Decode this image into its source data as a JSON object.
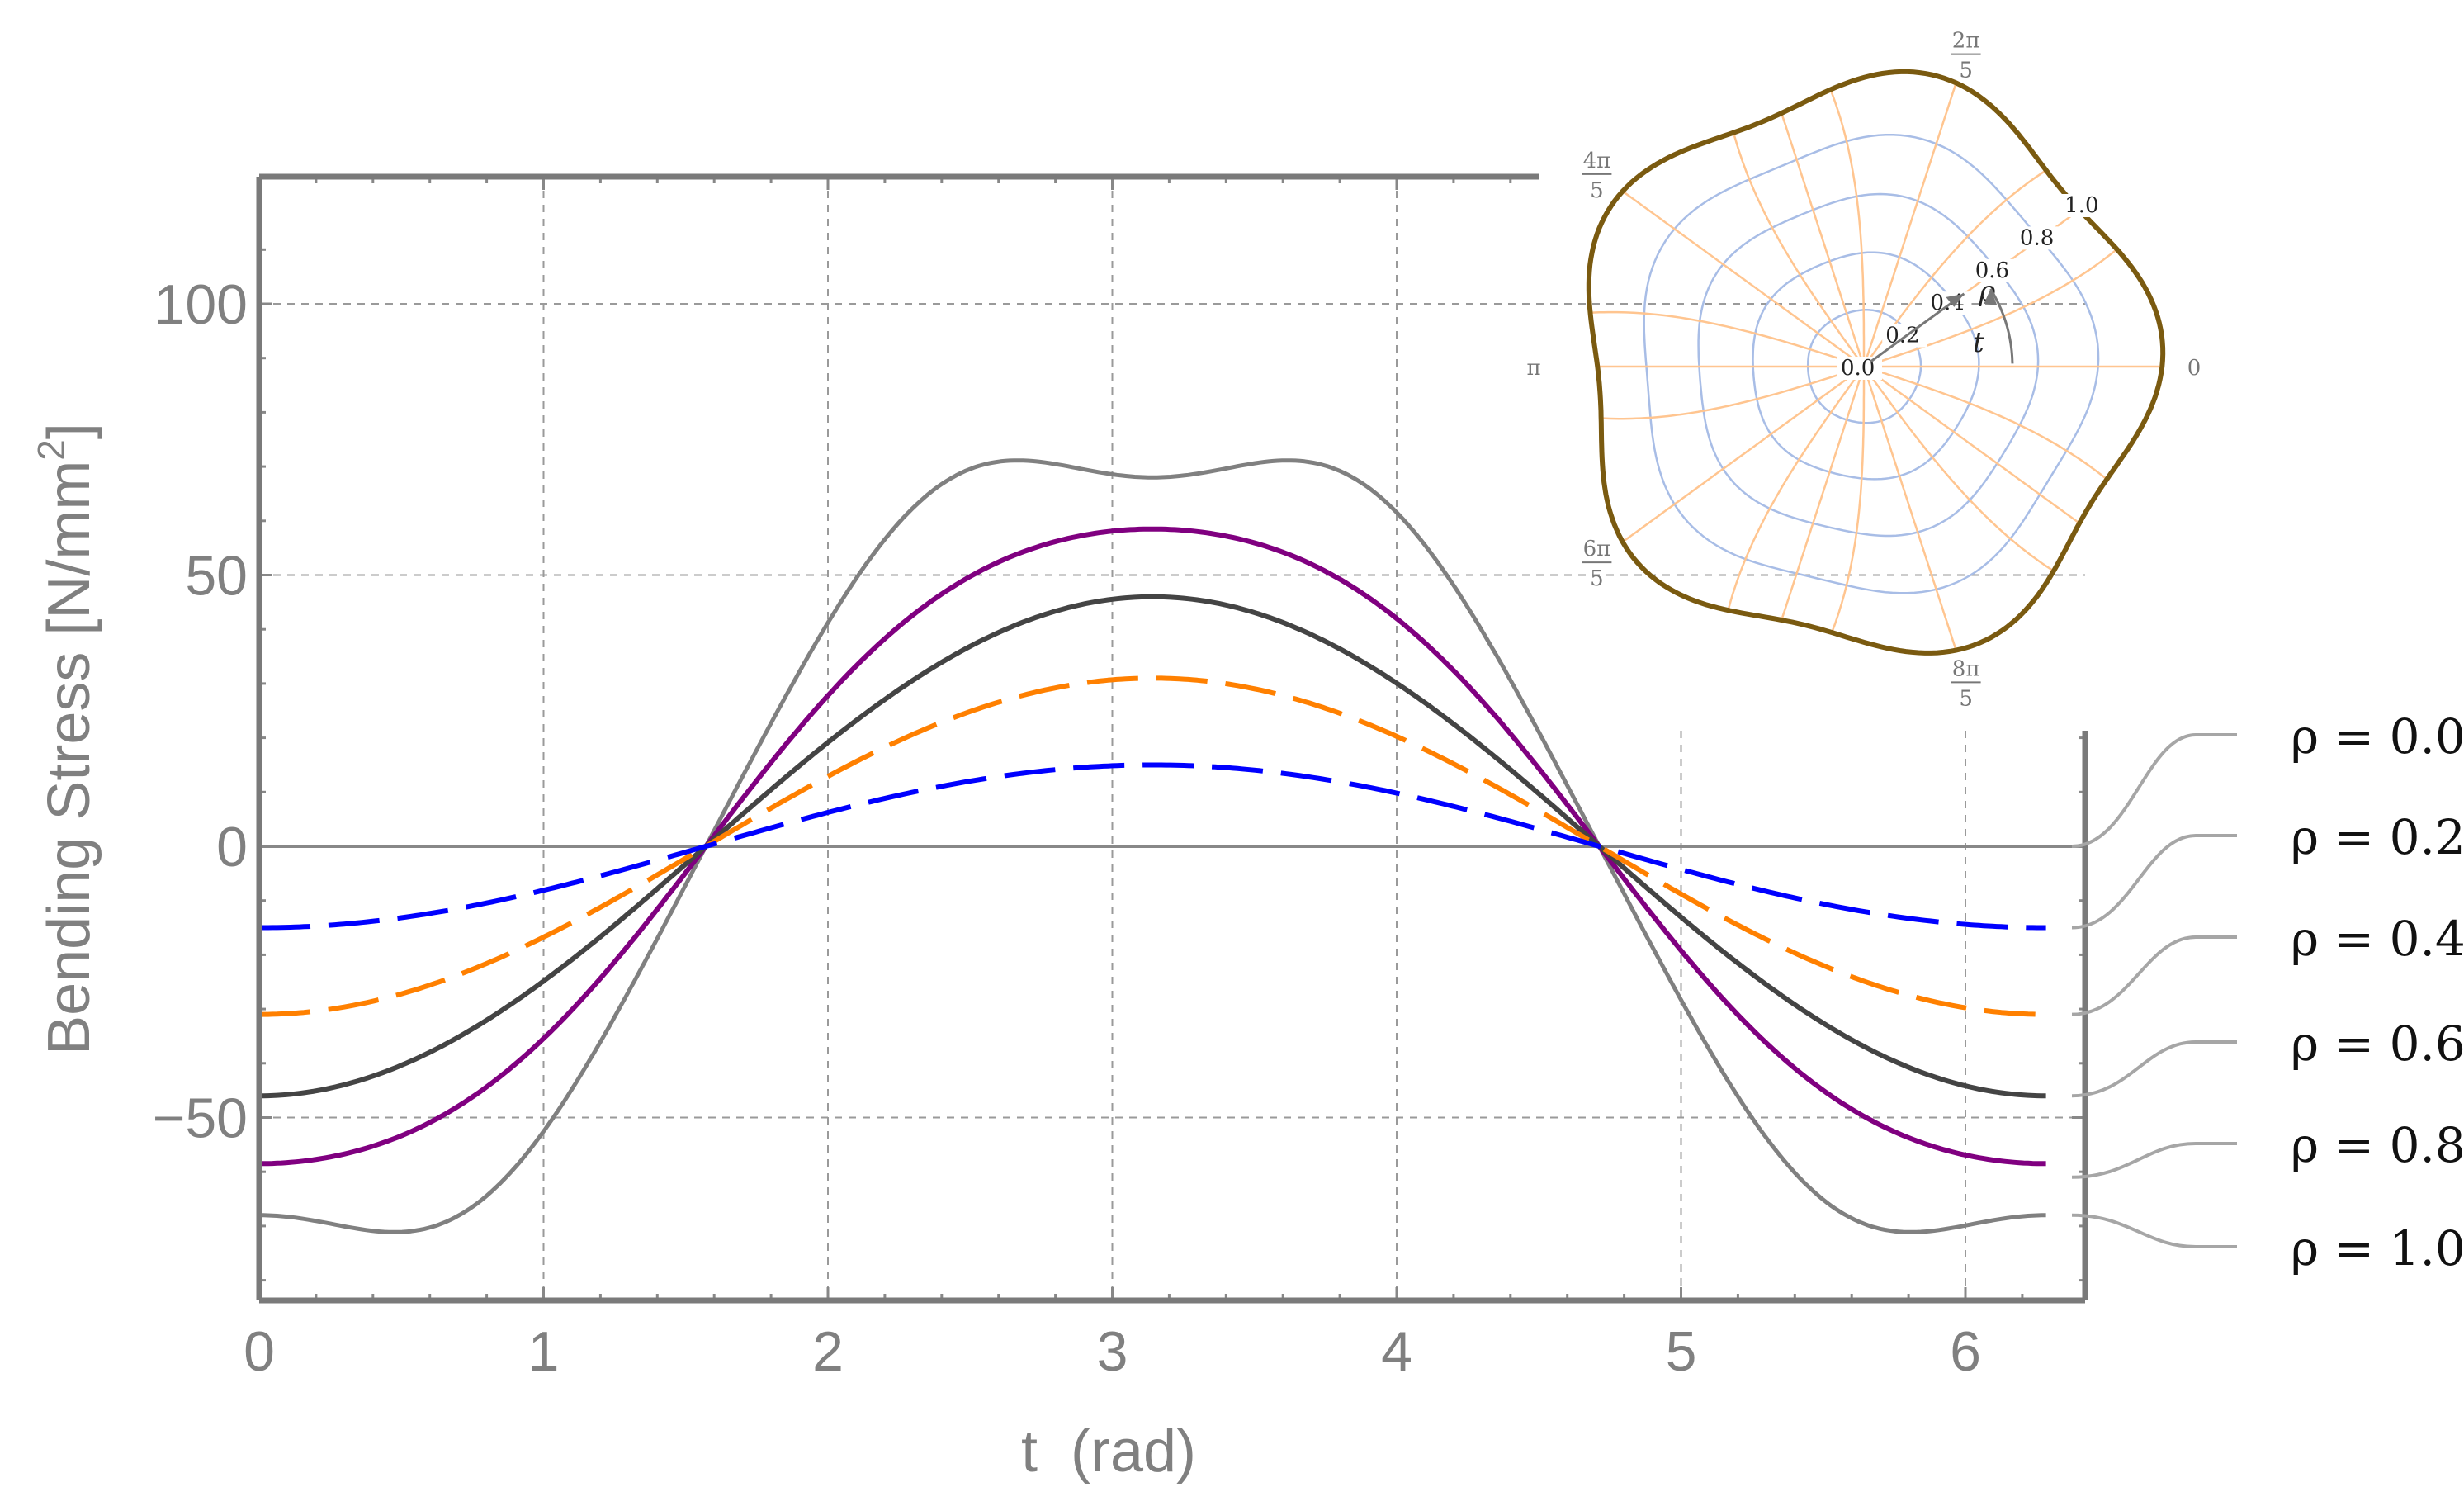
{
  "chart_data": [
    {
      "type": "line",
      "title": "",
      "xlabel": "t  (rad)",
      "ylabel": "Bending Stress [N/mm",
      "ylabel_superscript": "2",
      "ylabel_close": "]",
      "xlim": [
        0,
        6.4
      ],
      "ylim": [
        -85,
        120
      ],
      "x_ticks": [
        0,
        1,
        2,
        3,
        4,
        5,
        6
      ],
      "y_ticks": [
        -50,
        0,
        50,
        100
      ],
      "y_tick_labels": [
        "−50",
        "0",
        "50",
        "100"
      ],
      "grid": true,
      "legend_position": "right",
      "series": [
        {
          "name": "ρ = 0.0",
          "color": "#0000ff",
          "dashed": true,
          "amplitude": 15,
          "ripple": 0
        },
        {
          "name": "ρ = 0.2",
          "color": "#ff8000",
          "dashed": true,
          "amplitude": 31,
          "ripple": 0
        },
        {
          "name": "ρ = 0.4",
          "color": "#444444",
          "dashed": false,
          "amplitude": 46,
          "ripple": 0
        },
        {
          "name": "ρ = 0.6",
          "color": "#800080",
          "dashed": false,
          "amplitude": 61,
          "ripple": 0
        },
        {
          "name": "ρ = 0.8",
          "color": "#808080",
          "dashed": false,
          "amplitude": 80,
          "ripple": 7
        },
        {
          "name": "ρ = 1.0",
          "color": "#808080",
          "dashed": false,
          "amplitude": 80,
          "ripple": 7
        }
      ],
      "legend_entries": [
        "ρ = 0.0",
        "ρ = 0.2",
        "ρ = 0.4",
        "ρ = 0.6",
        "ρ = 0.8",
        "ρ = 1.0"
      ]
    },
    {
      "type": "polar-grid",
      "radial_labels": [
        "0.0",
        "0.2",
        "0.4",
        "0.6",
        "0.8",
        "1.0"
      ],
      "angle_labels": [
        {
          "num": "0",
          "den": "",
          "angle": 0
        },
        {
          "num": "2π",
          "den": "5",
          "angle": 72
        },
        {
          "num": "4π",
          "den": "5",
          "angle": 144
        },
        {
          "num": "π",
          "den": "",
          "angle": 180
        },
        {
          "num": "6π",
          "den": "5",
          "angle": 216
        },
        {
          "num": "8π",
          "den": "5",
          "angle": 288
        }
      ],
      "radius_symbol": "ρ",
      "angle_symbol": "t",
      "boundary_color": "#7a5a10",
      "radial_line_color": "#ffc590",
      "ring_color": "#a8bde6",
      "lobes": 5
    }
  ]
}
